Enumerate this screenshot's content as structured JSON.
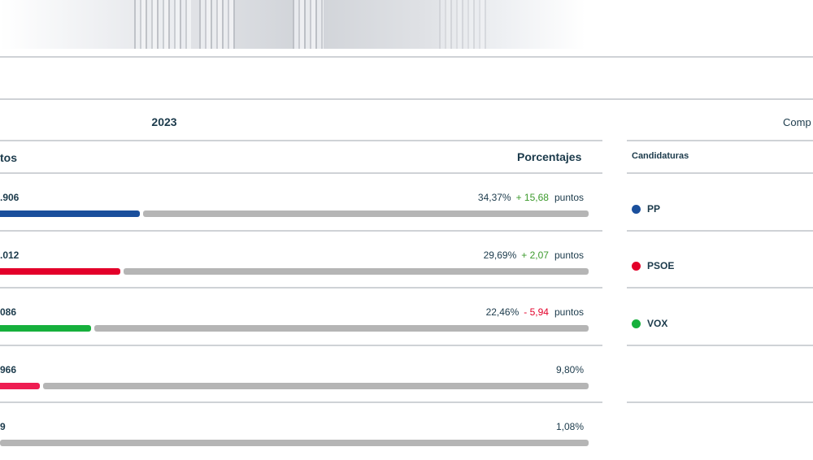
{
  "header": {
    "year": "2023",
    "compare_label": "Comp"
  },
  "columns": {
    "votes": "tos",
    "percent": "Porcentajes",
    "candidates": "Candidaturas"
  },
  "colors": {
    "PP": "#1a4f9c",
    "PSOE": "#e3002a",
    "VOX": "#16b03c",
    "OTHER": "#ee1d52",
    "track": "#b5b5b5",
    "up": "#3c9a2c",
    "down": "#e3002a"
  },
  "rows": [
    {
      "votes": ".906",
      "pct": "34,37%",
      "diff": "+ 15,68",
      "pts": "puntos",
      "diff_dir": "up",
      "share": 0.3437
    },
    {
      "votes": ".012",
      "pct": "29,69%",
      "diff": "+ 2,07",
      "pts": "puntos",
      "diff_dir": "up",
      "share": 0.2969
    },
    {
      "votes": "086",
      "pct": "22,46%",
      "diff": "- 5,94",
      "pts": "puntos",
      "diff_dir": "down",
      "share": 0.2246
    },
    {
      "votes": "966",
      "pct": "9,80%",
      "diff": "",
      "pts": "",
      "diff_dir": "",
      "share": 0.098
    },
    {
      "votes": "9",
      "pct": "1,08%",
      "diff": "",
      "pts": "",
      "diff_dir": "",
      "share": 0.0108
    }
  ],
  "candidates": [
    {
      "name": "PP"
    },
    {
      "name": "PSOE"
    },
    {
      "name": "VOX"
    }
  ]
}
